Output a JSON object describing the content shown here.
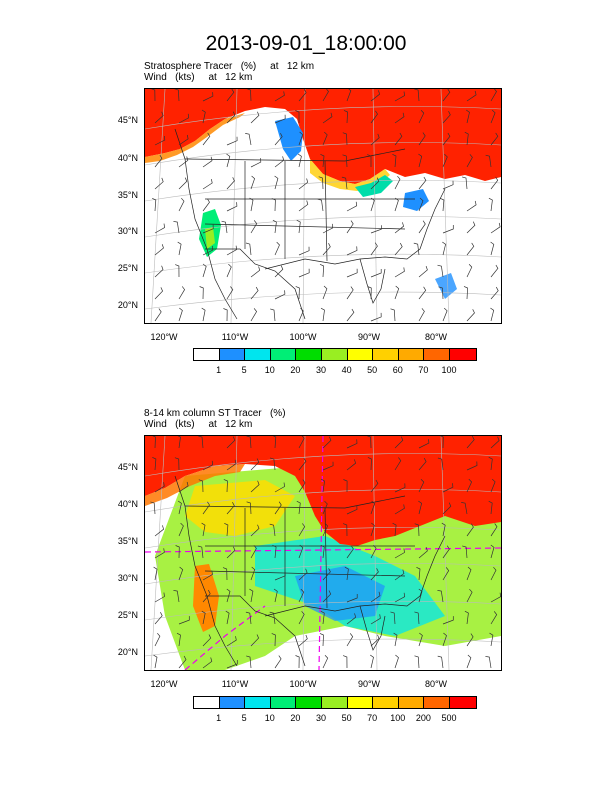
{
  "title": "2013-09-01_18:00:00",
  "panels": [
    {
      "subtitle_line1": "Stratosphere Tracer   (%)     at   12 km",
      "subtitle_line2": "Wind   (kts)     at   12 km",
      "lat_labels": [
        "45°N",
        "40°N",
        "35°N",
        "30°N",
        "25°N",
        "20°N"
      ],
      "lon_labels": [
        "120°W",
        "110°W",
        "100°W",
        "90°W",
        "80°W"
      ],
      "colorbar": {
        "levels": [
          "1",
          "5",
          "10",
          "20",
          "30",
          "40",
          "50",
          "60",
          "70",
          "100"
        ],
        "colors": [
          "#ffffff",
          "#1e90ff",
          "#00e5ee",
          "#00ee76",
          "#00dd00",
          "#99ee22",
          "#ffff00",
          "#ffd000",
          "#ffaa00",
          "#ff6600",
          "#ff0000"
        ]
      }
    },
    {
      "subtitle_line1": "8-14 km column ST Tracer   (%)",
      "subtitle_line2": "Wind   (kts)     at   12 km",
      "lat_labels": [
        "45°N",
        "40°N",
        "35°N",
        "30°N",
        "25°N",
        "20°N"
      ],
      "lon_labels": [
        "120°W",
        "110°W",
        "100°W",
        "90°W",
        "80°W"
      ],
      "colorbar": {
        "levels": [
          "1",
          "5",
          "10",
          "20",
          "30",
          "50",
          "70",
          "100",
          "200",
          "500"
        ],
        "colors": [
          "#ffffff",
          "#1e90ff",
          "#00e5ee",
          "#00ee76",
          "#00dd00",
          "#99ee22",
          "#ffff00",
          "#ffd000",
          "#ffaa00",
          "#ff6600",
          "#ff0000"
        ]
      }
    }
  ]
}
